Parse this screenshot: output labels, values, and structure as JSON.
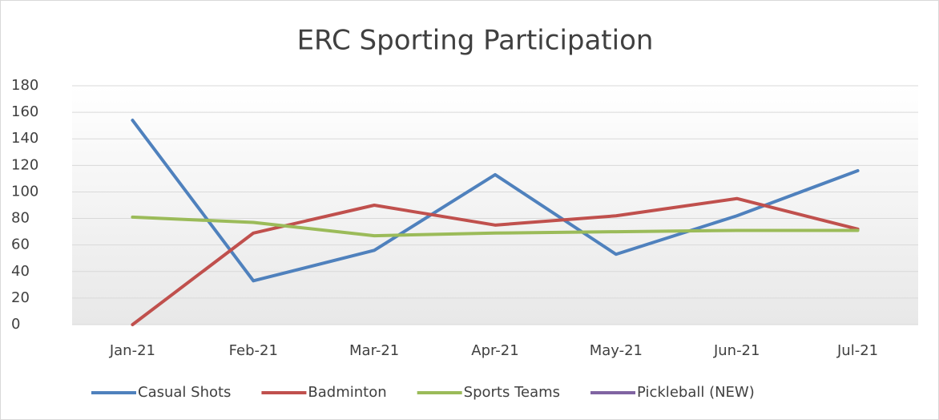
{
  "chart_data": {
    "type": "line",
    "title": "ERC Sporting Participation",
    "categories": [
      "Jan-21",
      "Feb-21",
      "Mar-21",
      "Apr-21",
      "May-21",
      "Jun-21",
      "Jul-21"
    ],
    "series": [
      {
        "name": "Casual Shots",
        "color": "#4f81bd",
        "values": [
          154,
          33,
          56,
          113,
          53,
          82,
          116
        ]
      },
      {
        "name": "Badminton",
        "color": "#c0504d",
        "values": [
          0,
          69,
          90,
          75,
          82,
          95,
          72
        ]
      },
      {
        "name": "Sports Teams",
        "color": "#9bbb59",
        "values": [
          81,
          77,
          67,
          69,
          70,
          71,
          71
        ]
      },
      {
        "name": "Pickleball (NEW)",
        "color": "#8064a2",
        "values": [
          null,
          null,
          null,
          null,
          null,
          null,
          null
        ]
      }
    ],
    "ylim": [
      0,
      180
    ],
    "yticks": [
      0,
      20,
      40,
      60,
      80,
      100,
      120,
      140,
      160,
      180
    ],
    "grid": true,
    "legend": "bottom"
  }
}
